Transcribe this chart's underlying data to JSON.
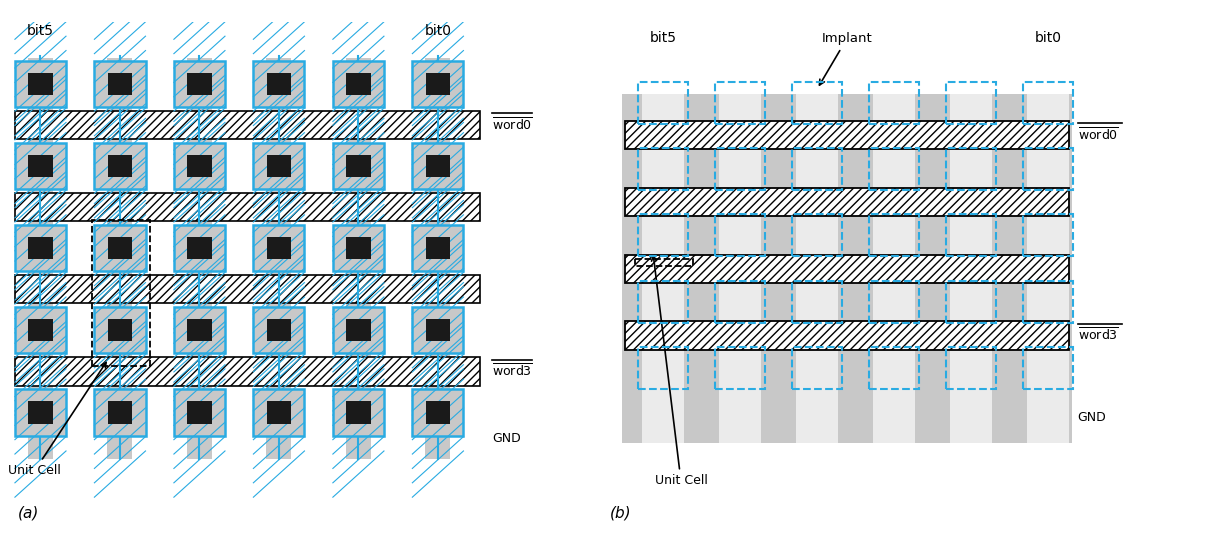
{
  "fig_width": 12.08,
  "fig_height": 5.58,
  "bg_color": "#ffffff",
  "cyan": "#29abe2",
  "gray_light": "#c8c8c8",
  "gray_mid": "#a0a0a0",
  "black": "#000000",
  "hatch_color": "#000000",
  "dashed_color": "#000000",
  "title_a": "(a)",
  "title_b": "(b)",
  "label_bit5_a": "bit5",
  "label_bit0_a": "bit0",
  "label_bit5_b": "bit5",
  "label_bit0_b": "bit0",
  "label_implant": "Implant",
  "label_word0": "word0",
  "label_word3": "word3",
  "label_gnd": "GND",
  "label_unit_cell": "Unit Cell",
  "rows": 5,
  "cols": 6
}
